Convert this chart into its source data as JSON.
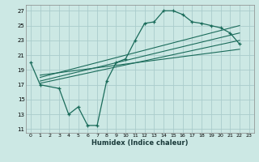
{
  "xlabel": "Humidex (Indice chaleur)",
  "bg_color": "#cce8e4",
  "grid_color": "#aacccc",
  "line_color": "#1a6b5a",
  "xlim": [
    -0.5,
    23.5
  ],
  "ylim": [
    10.5,
    27.8
  ],
  "yticks": [
    11,
    13,
    15,
    17,
    19,
    21,
    23,
    25,
    27
  ],
  "xticks": [
    0,
    1,
    2,
    3,
    4,
    5,
    6,
    7,
    8,
    9,
    10,
    11,
    12,
    13,
    14,
    15,
    16,
    17,
    18,
    19,
    20,
    21,
    22,
    23
  ],
  "curve1_x": [
    0,
    1,
    3,
    4,
    5,
    6,
    7,
    8,
    9,
    10,
    11,
    12,
    13,
    14,
    15,
    16,
    17,
    18,
    19,
    20,
    21,
    22
  ],
  "curve1_y": [
    20.0,
    17.0,
    16.5,
    13.0,
    14.0,
    11.5,
    11.5,
    17.5,
    20.0,
    20.5,
    23.0,
    25.3,
    25.5,
    27.0,
    27.0,
    26.5,
    25.5,
    25.3,
    25.0,
    24.7,
    24.0,
    22.5
  ],
  "line1_x": [
    1,
    22
  ],
  "line1_y": [
    17.2,
    23.0
  ],
  "line2_x": [
    1,
    22
  ],
  "line2_y": [
    17.5,
    24.0
  ],
  "line3_x": [
    1,
    22
  ],
  "line3_y": [
    18.0,
    25.0
  ],
  "line4_x": [
    1,
    22
  ],
  "line4_y": [
    18.3,
    21.8
  ]
}
